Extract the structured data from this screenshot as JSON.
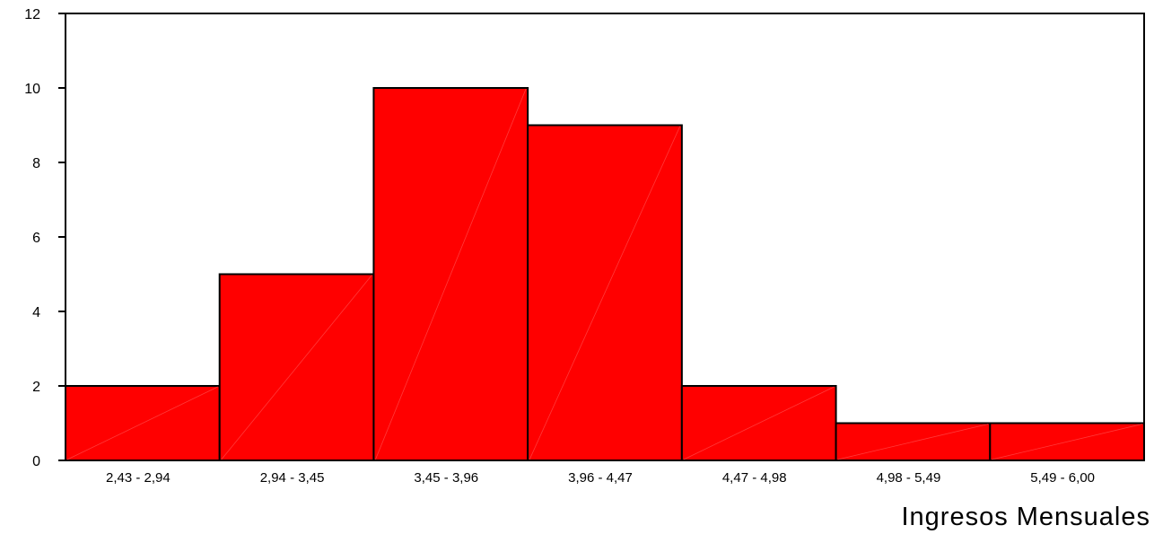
{
  "chart_data": {
    "type": "bar",
    "categories": [
      "2,43 - 2,94",
      "2,94 - 3,45",
      "3,45 - 3,96",
      "3,96 - 4,47",
      "4,47 - 4,98",
      "4,98 - 5,49",
      "5,49 - 6,00"
    ],
    "values": [
      2,
      5,
      10,
      9,
      2,
      1,
      1
    ],
    "xlabel": "Ingresos Mensuales",
    "ylabel": "",
    "ylim": [
      0,
      12
    ],
    "yticks": [
      0,
      2,
      4,
      6,
      8,
      10,
      12
    ],
    "bar_color": "#ff0000",
    "grid": false
  }
}
